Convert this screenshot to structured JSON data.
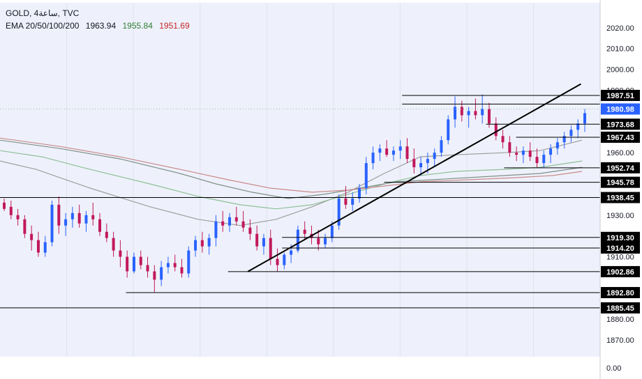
{
  "header": {
    "symbol": "GOLD, 4ساعة, TVC",
    "ema_label": "EMA 20/50/100/200",
    "ema_values": [
      "1963.94",
      "1955.84",
      "1951.69"
    ]
  },
  "colors": {
    "background": "#eef1fb",
    "up": "#2962ff",
    "down": "#c2185b",
    "ema20": "#9e9e9e",
    "ema50": "#8fbf98",
    "ema100": "#7f8f86",
    "ema200": "#c98a8a",
    "ema_value_1": "#131722",
    "ema_value_2": "#2e7d32",
    "ema_value_3": "#c62828",
    "price_tag": "#2962ff",
    "level_line": "#000000"
  },
  "axis": {
    "y_ticks": [
      "2020.00",
      "2010.00",
      "2000.00",
      "1990.00",
      "1960.00",
      "1930.00",
      "1910.00",
      "1880.00",
      "1870.00"
    ],
    "y_tick_values": [
      2020,
      2010,
      2000,
      1990,
      1960,
      1930,
      1910,
      1880,
      1870
    ],
    "bottom_label": "0.00"
  },
  "chart_data": {
    "type": "candlestick",
    "title": "GOLD, 4ساعة, TVC",
    "ylim": [
      1862,
      2032
    ],
    "last_price": "1980.98",
    "levels": [
      {
        "price": 1987.51,
        "label": "1987.51",
        "from": 0.67
      },
      {
        "price": 1983.34,
        "label": "",
        "from": 0.67
      },
      {
        "price": 1973.68,
        "label": "1973.68",
        "from": 0.81
      },
      {
        "price": 1967.43,
        "label": "1967.43",
        "from": 0.86
      },
      {
        "price": 1952.74,
        "label": "1952.74",
        "from": 0.84
      },
      {
        "price": 1945.78,
        "label": "1945.78",
        "from": 0.64
      },
      {
        "price": 1938.45,
        "label": "1938.45",
        "from": 0.0
      },
      {
        "price": 1919.3,
        "label": "1919.30",
        "from": 0.47
      },
      {
        "price": 1914.2,
        "label": "1914.20",
        "from": 0.47
      },
      {
        "price": 1902.86,
        "label": "1902.86",
        "from": 0.38
      },
      {
        "price": 1892.8,
        "label": "1892.80",
        "from": 0.21
      },
      {
        "price": 1885.45,
        "label": "1885.45",
        "from": 0.0
      }
    ],
    "trendline": {
      "x0": 0.413,
      "y0": 1902.9,
      "x1": 0.968,
      "y1": 1993.0
    },
    "ema_series": [
      {
        "points": [
          [
            0,
            1956
          ],
          [
            0.06,
            1952
          ],
          [
            0.15,
            1943
          ],
          [
            0.25,
            1934
          ],
          [
            0.33,
            1928
          ],
          [
            0.4,
            1925
          ],
          [
            0.46,
            1928
          ],
          [
            0.52,
            1934
          ],
          [
            0.58,
            1941
          ],
          [
            0.64,
            1950
          ],
          [
            0.7,
            1958
          ],
          [
            0.76,
            1959
          ],
          [
            0.84,
            1960
          ],
          [
            0.9,
            1961
          ],
          [
            0.97,
            1966
          ]
        ]
      },
      {
        "points": [
          [
            0,
            1961
          ],
          [
            0.07,
            1958
          ],
          [
            0.15,
            1952
          ],
          [
            0.25,
            1945
          ],
          [
            0.33,
            1939
          ],
          [
            0.4,
            1935
          ],
          [
            0.46,
            1933
          ],
          [
            0.52,
            1935
          ],
          [
            0.58,
            1940
          ],
          [
            0.64,
            1945
          ],
          [
            0.7,
            1949
          ],
          [
            0.76,
            1951
          ],
          [
            0.84,
            1952
          ],
          [
            0.9,
            1953
          ],
          [
            0.97,
            1956
          ]
        ]
      },
      {
        "points": [
          [
            0,
            1966
          ],
          [
            0.1,
            1962
          ],
          [
            0.2,
            1957
          ],
          [
            0.3,
            1950
          ],
          [
            0.36,
            1945
          ],
          [
            0.42,
            1941
          ],
          [
            0.48,
            1938
          ],
          [
            0.54,
            1940
          ],
          [
            0.6,
            1943
          ],
          [
            0.66,
            1946
          ],
          [
            0.72,
            1947
          ],
          [
            0.78,
            1948
          ],
          [
            0.84,
            1949
          ],
          [
            0.9,
            1950
          ],
          [
            0.97,
            1953
          ]
        ]
      },
      {
        "points": [
          [
            0,
            1967
          ],
          [
            0.1,
            1963
          ],
          [
            0.2,
            1958
          ],
          [
            0.3,
            1952
          ],
          [
            0.38,
            1947
          ],
          [
            0.45,
            1943
          ],
          [
            0.52,
            1941
          ],
          [
            0.58,
            1942
          ],
          [
            0.64,
            1944
          ],
          [
            0.7,
            1946
          ],
          [
            0.78,
            1947
          ],
          [
            0.86,
            1948
          ],
          [
            0.92,
            1949
          ],
          [
            0.97,
            1951
          ]
        ]
      }
    ],
    "candles": [
      [
        1936,
        1938,
        1932,
        1933
      ],
      [
        1934,
        1937,
        1928,
        1930
      ],
      [
        1930,
        1933,
        1925,
        1928
      ],
      [
        1928,
        1930,
        1919,
        1921
      ],
      [
        1921,
        1925,
        1913,
        1918
      ],
      [
        1918,
        1922,
        1910,
        1912
      ],
      [
        1912,
        1920,
        1910,
        1917
      ],
      [
        1917,
        1937,
        1915,
        1935
      ],
      [
        1935,
        1939,
        1921,
        1925
      ],
      [
        1925,
        1931,
        1920,
        1928
      ],
      [
        1928,
        1934,
        1924,
        1931
      ],
      [
        1931,
        1935,
        1924,
        1926
      ],
      [
        1926,
        1932,
        1922,
        1930
      ],
      [
        1930,
        1936,
        1925,
        1928
      ],
      [
        1928,
        1931,
        1920,
        1922
      ],
      [
        1922,
        1926,
        1917,
        1919
      ],
      [
        1919,
        1922,
        1910,
        1913
      ],
      [
        1913,
        1918,
        1905,
        1910
      ],
      [
        1910,
        1913,
        1900,
        1903
      ],
      [
        1903,
        1912,
        1902,
        1910
      ],
      [
        1910,
        1913,
        1904,
        1906
      ],
      [
        1906,
        1910,
        1900,
        1903
      ],
      [
        1903,
        1906,
        1893,
        1899
      ],
      [
        1899,
        1908,
        1896,
        1905
      ],
      [
        1905,
        1910,
        1902,
        1907
      ],
      [
        1907,
        1911,
        1903,
        1905
      ],
      [
        1905,
        1909,
        1900,
        1902
      ],
      [
        1902,
        1915,
        1900,
        1913
      ],
      [
        1913,
        1920,
        1910,
        1918
      ],
      [
        1918,
        1922,
        1912,
        1915
      ],
      [
        1915,
        1921,
        1911,
        1919
      ],
      [
        1919,
        1930,
        1915,
        1927
      ],
      [
        1927,
        1932,
        1922,
        1925
      ],
      [
        1925,
        1931,
        1922,
        1929
      ],
      [
        1929,
        1934,
        1925,
        1927
      ],
      [
        1927,
        1932,
        1922,
        1924
      ],
      [
        1924,
        1928,
        1918,
        1921
      ],
      [
        1921,
        1925,
        1913,
        1915
      ],
      [
        1915,
        1921,
        1911,
        1919
      ],
      [
        1919,
        1923,
        1906,
        1909
      ],
      [
        1909,
        1914,
        1903,
        1906
      ],
      [
        1906,
        1912,
        1904,
        1911
      ],
      [
        1911,
        1916,
        1907,
        1913
      ],
      [
        1913,
        1925,
        1912,
        1923
      ],
      [
        1923,
        1927,
        1918,
        1921
      ],
      [
        1921,
        1925,
        1916,
        1919
      ],
      [
        1919,
        1923,
        1913,
        1916
      ],
      [
        1916,
        1921,
        1914,
        1919
      ],
      [
        1919,
        1927,
        1917,
        1925
      ],
      [
        1925,
        1940,
        1923,
        1938
      ],
      [
        1938,
        1944,
        1933,
        1935
      ],
      [
        1935,
        1941,
        1932,
        1938
      ],
      [
        1938,
        1945,
        1936,
        1943
      ],
      [
        1943,
        1958,
        1940,
        1955
      ],
      [
        1955,
        1963,
        1952,
        1960
      ],
      [
        1960,
        1964,
        1956,
        1962
      ],
      [
        1962,
        1966,
        1958,
        1959
      ],
      [
        1959,
        1963,
        1956,
        1961
      ],
      [
        1961,
        1966,
        1957,
        1963
      ],
      [
        1963,
        1967,
        1955,
        1957
      ],
      [
        1957,
        1962,
        1950,
        1953
      ],
      [
        1953,
        1958,
        1949,
        1955
      ],
      [
        1955,
        1960,
        1950,
        1957
      ],
      [
        1957,
        1962,
        1953,
        1960
      ],
      [
        1960,
        1968,
        1958,
        1966
      ],
      [
        1966,
        1978,
        1964,
        1976
      ],
      [
        1976,
        1987,
        1972,
        1982
      ],
      [
        1982,
        1985,
        1975,
        1978
      ],
      [
        1978,
        1982,
        1972,
        1980
      ],
      [
        1980,
        1986,
        1976,
        1978
      ],
      [
        1978,
        1988,
        1974,
        1981
      ],
      [
        1981,
        1984,
        1972,
        1974
      ],
      [
        1974,
        1977,
        1966,
        1968
      ],
      [
        1968,
        1971,
        1962,
        1965
      ],
      [
        1965,
        1968,
        1958,
        1960
      ],
      [
        1960,
        1963,
        1956,
        1959
      ],
      [
        1959,
        1963,
        1955,
        1961
      ],
      [
        1961,
        1965,
        1956,
        1958
      ],
      [
        1958,
        1962,
        1953,
        1955
      ],
      [
        1955,
        1961,
        1953,
        1959
      ],
      [
        1959,
        1964,
        1955,
        1962
      ],
      [
        1962,
        1967,
        1959,
        1965
      ],
      [
        1965,
        1970,
        1962,
        1968
      ],
      [
        1968,
        1973,
        1965,
        1971
      ],
      [
        1971,
        1976,
        1967,
        1974
      ],
      [
        1974,
        1981,
        1970,
        1979
      ]
    ]
  }
}
